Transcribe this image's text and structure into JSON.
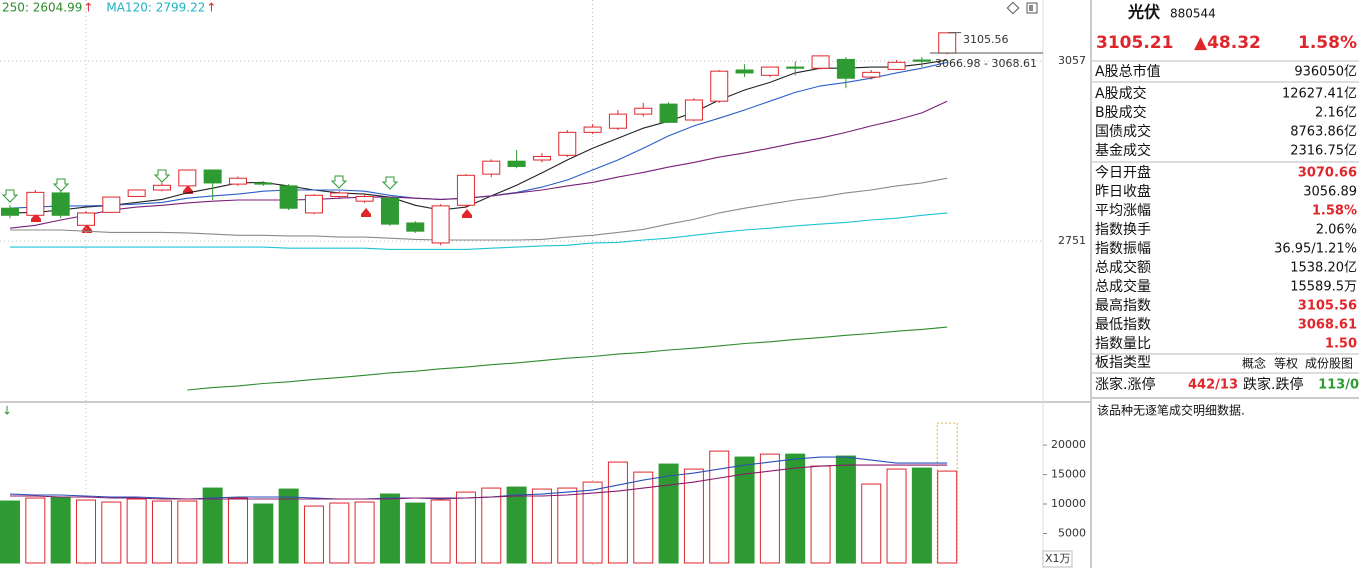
{
  "chart_data": [
    {
      "type": "candlestick",
      "ylim": [
        2481,
        3161
      ],
      "yticks": [
        3057,
        2751
      ],
      "grid": true,
      "up_color": "#e0262b",
      "down_color": "#2e9a32",
      "open": [
        2807,
        2795,
        2833,
        2778,
        2800,
        2827,
        2838,
        2845,
        2872,
        2848,
        2850,
        2845,
        2799,
        2827,
        2819,
        2824,
        2782,
        2748,
        2812,
        2865,
        2887,
        2889,
        2897,
        2936,
        2943,
        2967,
        2984,
        2957,
        2989,
        3042,
        3033,
        3047,
        3045,
        3060,
        3030,
        3043,
        3059,
        3070.66
      ],
      "close": [
        2795,
        2834,
        2795,
        2799,
        2826,
        2838,
        2846,
        2872,
        2850,
        2858,
        2848,
        2807,
        2829,
        2833,
        2827,
        2780,
        2768,
        2811,
        2863,
        2887,
        2878,
        2895,
        2936,
        2945,
        2967,
        2977,
        2953,
        2991,
        3040,
        3037,
        3047,
        3045,
        3066,
        3028,
        3038,
        3055,
        3056.89,
        3105.21
      ],
      "high": [
        2812,
        2838,
        2838,
        2802,
        2827,
        2839,
        2850,
        2873,
        2873,
        2861,
        2853,
        2848,
        2831,
        2836,
        2831,
        2827,
        2785,
        2814,
        2865,
        2890,
        2906,
        2901,
        2940,
        2950,
        2974,
        2986,
        2987,
        2994,
        3042,
        3052,
        3048,
        3057,
        3067,
        3064,
        3042,
        3059,
        3064,
        3105.56
      ],
      "low": [
        2790,
        2792,
        2790,
        2775,
        2799,
        2826,
        2836,
        2843,
        2821,
        2845,
        2845,
        2804,
        2797,
        2824,
        2816,
        2777,
        2765,
        2744,
        2807,
        2860,
        2875,
        2885,
        2894,
        2933,
        2940,
        2963,
        2952,
        2955,
        2986,
        3030,
        3030,
        3033,
        3043,
        3011,
        3026,
        3042,
        3047,
        3068.61
      ],
      "series": [
        {
          "color": "#222222",
          "values": [
            2799,
            2800,
            2804,
            2809,
            2812,
            2817,
            2822,
            2833,
            2841,
            2850,
            2851,
            2845,
            2838,
            2833,
            2831,
            2826,
            2812,
            2804,
            2809,
            2828,
            2846,
            2867,
            2889,
            2909,
            2926,
            2943,
            2955,
            2970,
            2991,
            3008,
            3021,
            3037,
            3045,
            3045,
            3047,
            3047,
            3052,
            3059
          ]
        },
        {
          "color": "#2a5fc9",
          "values": [
            2807,
            2809,
            2811,
            2811,
            2812,
            2814,
            2817,
            2824,
            2828,
            2831,
            2836,
            2838,
            2838,
            2838,
            2836,
            2829,
            2824,
            2822,
            2824,
            2828,
            2834,
            2843,
            2855,
            2872,
            2889,
            2909,
            2930,
            2947,
            2960,
            2974,
            2989,
            3004,
            3015,
            3021,
            3028,
            3037,
            3045,
            3055
          ]
        },
        {
          "color": "#7a1f7a",
          "values": [
            2773,
            2778,
            2787,
            2795,
            2804,
            2809,
            2812,
            2816,
            2819,
            2821,
            2821,
            2821,
            2822,
            2824,
            2826,
            2826,
            2824,
            2822,
            2824,
            2828,
            2833,
            2838,
            2845,
            2851,
            2860,
            2868,
            2877,
            2885,
            2894,
            2901,
            2909,
            2918,
            2926,
            2936,
            2947,
            2957,
            2969,
            2989
          ]
        },
        {
          "color": "#8a8a8a",
          "values": [
            2770,
            2770,
            2770,
            2768,
            2766,
            2766,
            2766,
            2765,
            2763,
            2761,
            2761,
            2760,
            2760,
            2758,
            2758,
            2756,
            2754,
            2753,
            2753,
            2753,
            2753,
            2754,
            2758,
            2761,
            2766,
            2771,
            2780,
            2788,
            2799,
            2807,
            2814,
            2821,
            2826,
            2833,
            2838,
            2845,
            2850,
            2858
          ]
        },
        {
          "color": "#1fc3d3",
          "values": [
            2741,
            2741,
            2741,
            2741,
            2741,
            2741,
            2741,
            2741,
            2741,
            2741,
            2741,
            2739,
            2739,
            2739,
            2739,
            2737,
            2737,
            2737,
            2737,
            2739,
            2741,
            2743,
            2744,
            2748,
            2749,
            2753,
            2756,
            2761,
            2766,
            2770,
            2773,
            2777,
            2780,
            2783,
            2787,
            2790,
            2795,
            2799
          ]
        },
        {
          "color": "#2e8b2e",
          "values": [
            null,
            null,
            null,
            null,
            null,
            null,
            null,
            2498,
            2502,
            2505,
            2509,
            2512,
            2516,
            2519,
            2523,
            2527,
            2530,
            2534,
            2537,
            2541,
            2544,
            2548,
            2552,
            2555,
            2559,
            2562,
            2566,
            2569,
            2573,
            2577,
            2580,
            2584,
            2587,
            2591,
            2594,
            2598,
            2601,
            2605
          ]
        }
      ],
      "legend": [
        {
          "text": "250: 2604.99",
          "arrow": "↑",
          "color": "#2e8b2e"
        },
        {
          "text": "MA120: 2799.22",
          "arrow": "↑",
          "color": "#1fb3c3"
        }
      ],
      "annotations": [
        "3105.56",
        "3066.98 - 3068.61"
      ]
    },
    {
      "type": "bar",
      "ylim": [
        0,
        26800
      ],
      "yticks": [
        5000,
        10000,
        15000,
        20000
      ],
      "values": [
        10510,
        11020,
        11190,
        10680,
        10340,
        10850,
        10510,
        10510,
        12710,
        11020,
        10000,
        12540,
        9660,
        10170,
        10340,
        11700,
        10170,
        10680,
        12030,
        12710,
        12880,
        12540,
        12710,
        13730,
        17120,
        15420,
        16780,
        15930,
        18980,
        17970,
        18470,
        18470,
        16440,
        18140,
        13390,
        15930,
        16100,
        15590
      ],
      "projection": 23730,
      "projection_color": "#d4b84a",
      "series": [
        {
          "color": "#2a4fb9",
          "values": [
            11690,
            11530,
            11530,
            11360,
            11190,
            11190,
            11020,
            10850,
            11020,
            11190,
            11190,
            11190,
            11020,
            10850,
            10850,
            11020,
            11020,
            10850,
            11020,
            11190,
            11530,
            11690,
            12030,
            12370,
            13220,
            14070,
            14750,
            15250,
            15930,
            16610,
            17120,
            17630,
            17970,
            17970,
            17460,
            16950,
            16950,
            16950
          ]
        },
        {
          "color": "#8b1a6b",
          "values": [
            11360,
            11360,
            11190,
            11190,
            11020,
            11020,
            10850,
            10850,
            10850,
            10850,
            10850,
            10850,
            10850,
            10850,
            10850,
            10850,
            11020,
            11020,
            11020,
            11190,
            11360,
            11360,
            11530,
            11860,
            12200,
            12710,
            13220,
            13730,
            14410,
            15080,
            15590,
            16100,
            16440,
            16610,
            16610,
            16610,
            16610,
            16610
          ]
        }
      ],
      "marker": "↓",
      "unit_label": "X1万"
    }
  ],
  "quote_panel": {
    "name": "光伏",
    "code": "880544",
    "price": "3105.21",
    "change": "▲48.32",
    "change_pct": "1.58%",
    "rows": [
      {
        "label": "A股总市值",
        "value": "936050亿"
      },
      {
        "label": "A股成交",
        "value": "12627.41亿"
      },
      {
        "label": "B股成交",
        "value": "2.16亿"
      },
      {
        "label": "国债成交",
        "value": "8763.86亿"
      },
      {
        "label": "基金成交",
        "value": "2316.75亿"
      },
      {
        "label": "今日开盘",
        "value": "3070.66",
        "color": "#e0262b"
      },
      {
        "label": "昨日收盘",
        "value": "3056.89"
      },
      {
        "label": "平均涨幅",
        "value": "1.58%",
        "color": "#e0262b"
      },
      {
        "label": "指数换手",
        "value": "2.06%"
      },
      {
        "label": "指数振幅",
        "value": "36.95/1.21%"
      },
      {
        "label": "总成交额",
        "value": "1538.20亿"
      },
      {
        "label": "总成交量",
        "value": "15589.5万"
      },
      {
        "label": "最高指数",
        "value": "3105.56",
        "color": "#e0262b"
      },
      {
        "label": "最低指数",
        "value": "3068.61",
        "color": "#e0262b"
      },
      {
        "label": "指数量比",
        "value": "1.50",
        "color": "#e0262b"
      }
    ],
    "sector_type": {
      "label": "板指类型",
      "options": [
        "概念",
        "等权",
        "成份股图"
      ]
    },
    "breadth": {
      "up_label": "涨家.涨停",
      "up_value": "442/13",
      "down_label": "跌家.跌停",
      "down_value": "113/0"
    },
    "note": "该品种无逐笔成交明细数据."
  }
}
